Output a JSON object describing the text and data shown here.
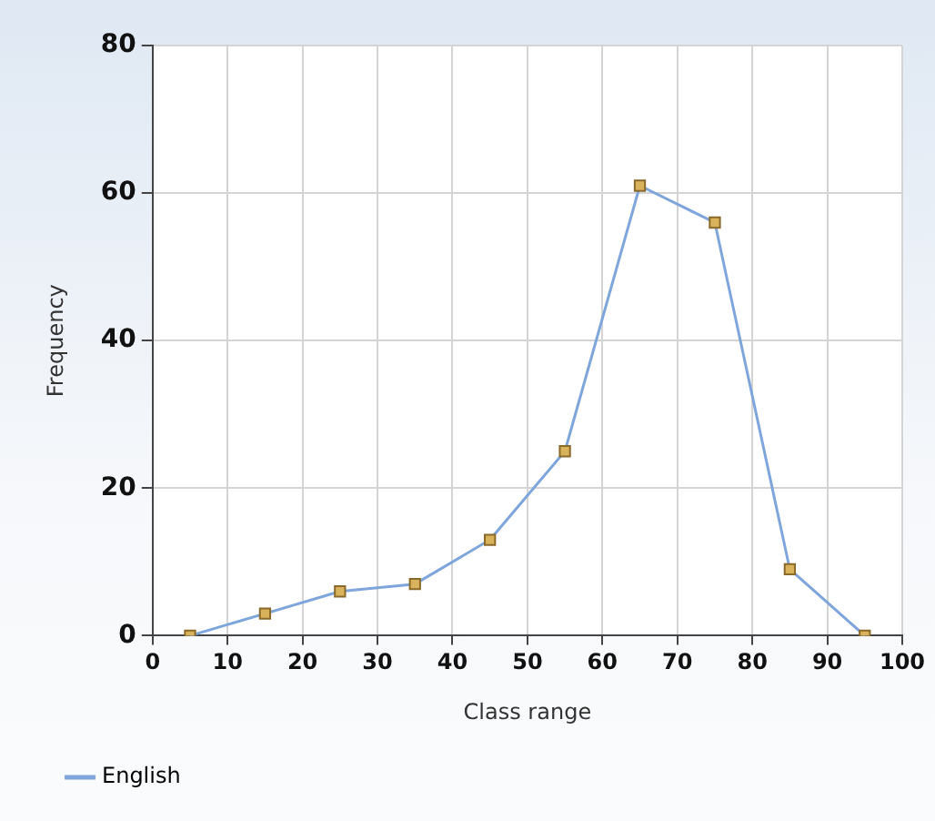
{
  "chart_data": {
    "type": "line",
    "xlabel": "Class range",
    "ylabel": "Frequency",
    "x": [
      5,
      15,
      25,
      35,
      45,
      55,
      65,
      75,
      85,
      95
    ],
    "series": [
      {
        "name": "English",
        "color": "#7fa6dc",
        "values": [
          0,
          3,
          6,
          7,
          13,
          25,
          61,
          56,
          9,
          0
        ]
      }
    ],
    "xlim": [
      0,
      100
    ],
    "xticks": [
      0,
      10,
      20,
      30,
      40,
      50,
      60,
      70,
      80,
      90,
      100
    ],
    "ylim": [
      0,
      80
    ],
    "yticks": [
      0,
      20,
      40,
      60,
      80
    ],
    "grid": true,
    "legend": "bottom left",
    "marker": "square",
    "line_style": "solid"
  }
}
